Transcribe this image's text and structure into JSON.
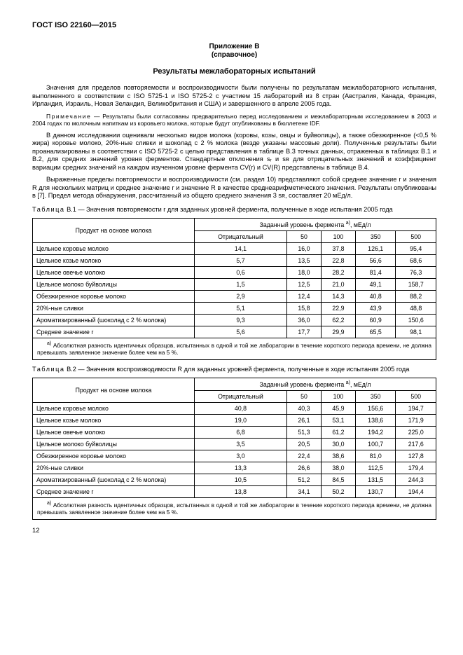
{
  "header": {
    "doc_id": "ГОСТ ISO 22160—2015"
  },
  "annex": {
    "label": "Приложение В",
    "paren": "(справочное)",
    "title": "Результаты межлабораторных испытаний"
  },
  "paragraphs": {
    "p1": "Значения для пределов повторяемости и воспроизводимости были получены по результатам межлабораторного испытания, выполненного в соответствии с ISO 5725-1 и ISO 5725-2 с участием 15 лабораторий из 8 стран (Австралия, Канада, Франция, Ирландия, Израиль, Новая Зеландия, Великобритания и США) и завершенного в апреле 2005 года.",
    "note_label": "Примечание",
    "note": " — Результаты были согласованы предварительно перед исследованием и межлабораторным исследованием в 2003 и 2004 годах по молочным напиткам из коровьего молока, которые будут опубликованы в бюллетене IDF.",
    "p2": "В данном исследовании оценивали несколько видов молока (коровы, козы, овцы и буйволицы), а также обезжиренное (<0,5 % жира) коровье молоко, 20%-ные сливки и шоколад с 2 % молока (везде указаны массовые доли). Полученные результаты были проанализированы в соответствии с ISO 5725-2 с целью представления в таблице В.3 точных данных, отраженных в таблицах В.1 и В.2, для средних значений уровня ферментов. Стандартные отклонения sᵣ и sʀ для отрицательных значений и коэффициент вариации средних значений на каждом изученном уровне фермента CV(r) и CV(R) представлены в таблице В.4.",
    "p3": "Выраженные пределы повторяемости и воспроизводимости (см. раздел 10) представляют собой среднее значение r и значения R для нескольких матриц и среднее значение r и значение R в качестве среднеарифметического значения. Результаты опубликованы в [7]. Предел метода обнаружения, рассчитанный из общего среднего значения 3 sʀ, составляет 20 мЕд/л."
  },
  "table1": {
    "caption_label": "Таблица",
    "caption": " В.1 — Значения повторяемости r для заданных уровней фермента, полученные в ходе испытания 2005 года",
    "col_header_left": "Продукт на основе молока",
    "col_header_top": "Заданный уровень фермента ",
    "col_header_unit": ", мЕд/л",
    "cols": [
      "Отрицательный",
      "50",
      "100",
      "350",
      "500"
    ],
    "rows": [
      {
        "label": "Цельное коровье молоко",
        "v": [
          "14,1",
          "16,0",
          "37,8",
          "126,1",
          "95,4"
        ]
      },
      {
        "label": "Цельное козье молоко",
        "v": [
          "5,7",
          "13,5",
          "22,8",
          "56,6",
          "68,6"
        ]
      },
      {
        "label": "Цельное овечье молоко",
        "v": [
          "0,6",
          "18,0",
          "28,2",
          "81,4",
          "76,3"
        ]
      },
      {
        "label": "Цельное молоко буйволицы",
        "v": [
          "1,5",
          "12,5",
          "21,0",
          "49,1",
          "158,7"
        ]
      },
      {
        "label": "Обезжиренное коровье молоко",
        "v": [
          "2,9",
          "12,4",
          "14,3",
          "40,8",
          "88,2"
        ]
      },
      {
        "label": "20%-ные сливки",
        "v": [
          "5,1",
          "15,8",
          "22,9",
          "43,9",
          "48,8"
        ]
      },
      {
        "label": "Ароматизированный (шоколад с 2 % молока)",
        "v": [
          "9,3",
          "36,0",
          "62,2",
          "60,9",
          "150,6"
        ]
      },
      {
        "label": "Среднее значение r",
        "v": [
          "5,6",
          "17,7",
          "29,9",
          "65,5",
          "98,1"
        ]
      }
    ],
    "footnote_sup": "a)",
    "footnote": " Абсолютная разность идентичных образцов, испытанных в одной и той же лаборатории в течение короткого периода времени, не должна превышать заявленное значение более чем на 5 %."
  },
  "table2": {
    "caption_label": "Таблица",
    "caption": " В.2 — Значения воспроизводимости R для заданных уровней фермента, полученные в ходе испытания 2005 года",
    "col_header_left": "Продукт на основе молока",
    "col_header_top": "Заданный уровень фермента ",
    "col_header_unit": ", мЕд/л",
    "cols": [
      "Отрицательный",
      "50",
      "100",
      "350",
      "500"
    ],
    "rows": [
      {
        "label": "Цельное коровье молоко",
        "v": [
          "40,8",
          "40,3",
          "45,9",
          "156,6",
          "194,7"
        ]
      },
      {
        "label": "Цельное козье молоко",
        "v": [
          "19,0",
          "26,1",
          "53,1",
          "138,6",
          "171,9"
        ]
      },
      {
        "label": "Цельное овечье молоко",
        "v": [
          "6,8",
          "51,3",
          "61,2",
          "194,2",
          "225,0"
        ]
      },
      {
        "label": "Цельное молоко буйволицы",
        "v": [
          "3,5",
          "20,5",
          "30,0",
          "100,7",
          "217,6"
        ]
      },
      {
        "label": "Обезжиренное коровье молоко",
        "v": [
          "3,0",
          "22,4",
          "38,6",
          "81,0",
          "127,8"
        ]
      },
      {
        "label": "20%-ные сливки",
        "v": [
          "13,3",
          "26,6",
          "38,0",
          "112,5",
          "179,4"
        ]
      },
      {
        "label": "Ароматизированный (шоколад с 2 % молока)",
        "v": [
          "10,5",
          "51,2",
          "84,5",
          "131,5",
          "244,3"
        ]
      },
      {
        "label": "Среднее значение r",
        "v": [
          "13,8",
          "34,1",
          "50,2",
          "130,7",
          "194,4"
        ]
      }
    ],
    "footnote_sup": "a)",
    "footnote": " Абсолютная разность идентичных образцов, испытанных в одной и той же лаборатории в течение короткого периода времени, не должна превышать заявленное значение более чем на 5 %."
  },
  "footer": {
    "page": "12"
  }
}
